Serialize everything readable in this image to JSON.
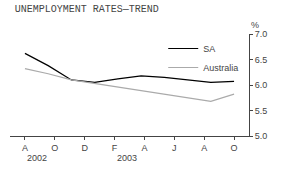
{
  "chart_data": {
    "type": "line",
    "title": "UNEMPLOYMENT RATES—TREND",
    "ylabel": "%",
    "x": [
      0,
      0.7777777777777778,
      1.5555555555555556,
      2.3333333333333335,
      3.111111111111111,
      3.888888888888889,
      4.666666666666667,
      5.444444444444445,
      6.222222222222222,
      7.0
    ],
    "series": [
      {
        "name": "SA",
        "color": "#000000",
        "values": [
          6.62,
          6.38,
          6.1,
          6.05,
          6.12,
          6.18,
          6.15,
          6.1,
          6.05,
          6.07
        ]
      },
      {
        "name": "Australia",
        "color": "#aaaaaa",
        "values": [
          6.32,
          6.22,
          6.1,
          6.03,
          5.96,
          5.9,
          5.82,
          5.75,
          5.68,
          5.82
        ]
      }
    ],
    "xlim": [
      -0.5,
      7.5
    ],
    "xticks": [
      {
        "value": 0,
        "label": "A"
      },
      {
        "value": 1,
        "label": "O"
      },
      {
        "value": 2,
        "label": "D"
      },
      {
        "value": 3,
        "label": "F"
      },
      {
        "value": 4,
        "label": "A"
      },
      {
        "value": 5,
        "label": "J"
      },
      {
        "value": 6,
        "label": "A"
      },
      {
        "value": 7,
        "label": "O"
      }
    ],
    "ylim": [
      5.0,
      7.0
    ],
    "yticks": [
      {
        "value": 5,
        "label": "5.0"
      },
      5.5,
      {
        "value": 6,
        "label": "6.0"
      },
      6.5,
      {
        "value": 7,
        "label": "7.0"
      }
    ],
    "annotations": [
      {
        "text": "2002",
        "x": 0
      },
      {
        "text": "2003",
        "x": 3
      }
    ],
    "grid": false,
    "legend": "upper right"
  }
}
